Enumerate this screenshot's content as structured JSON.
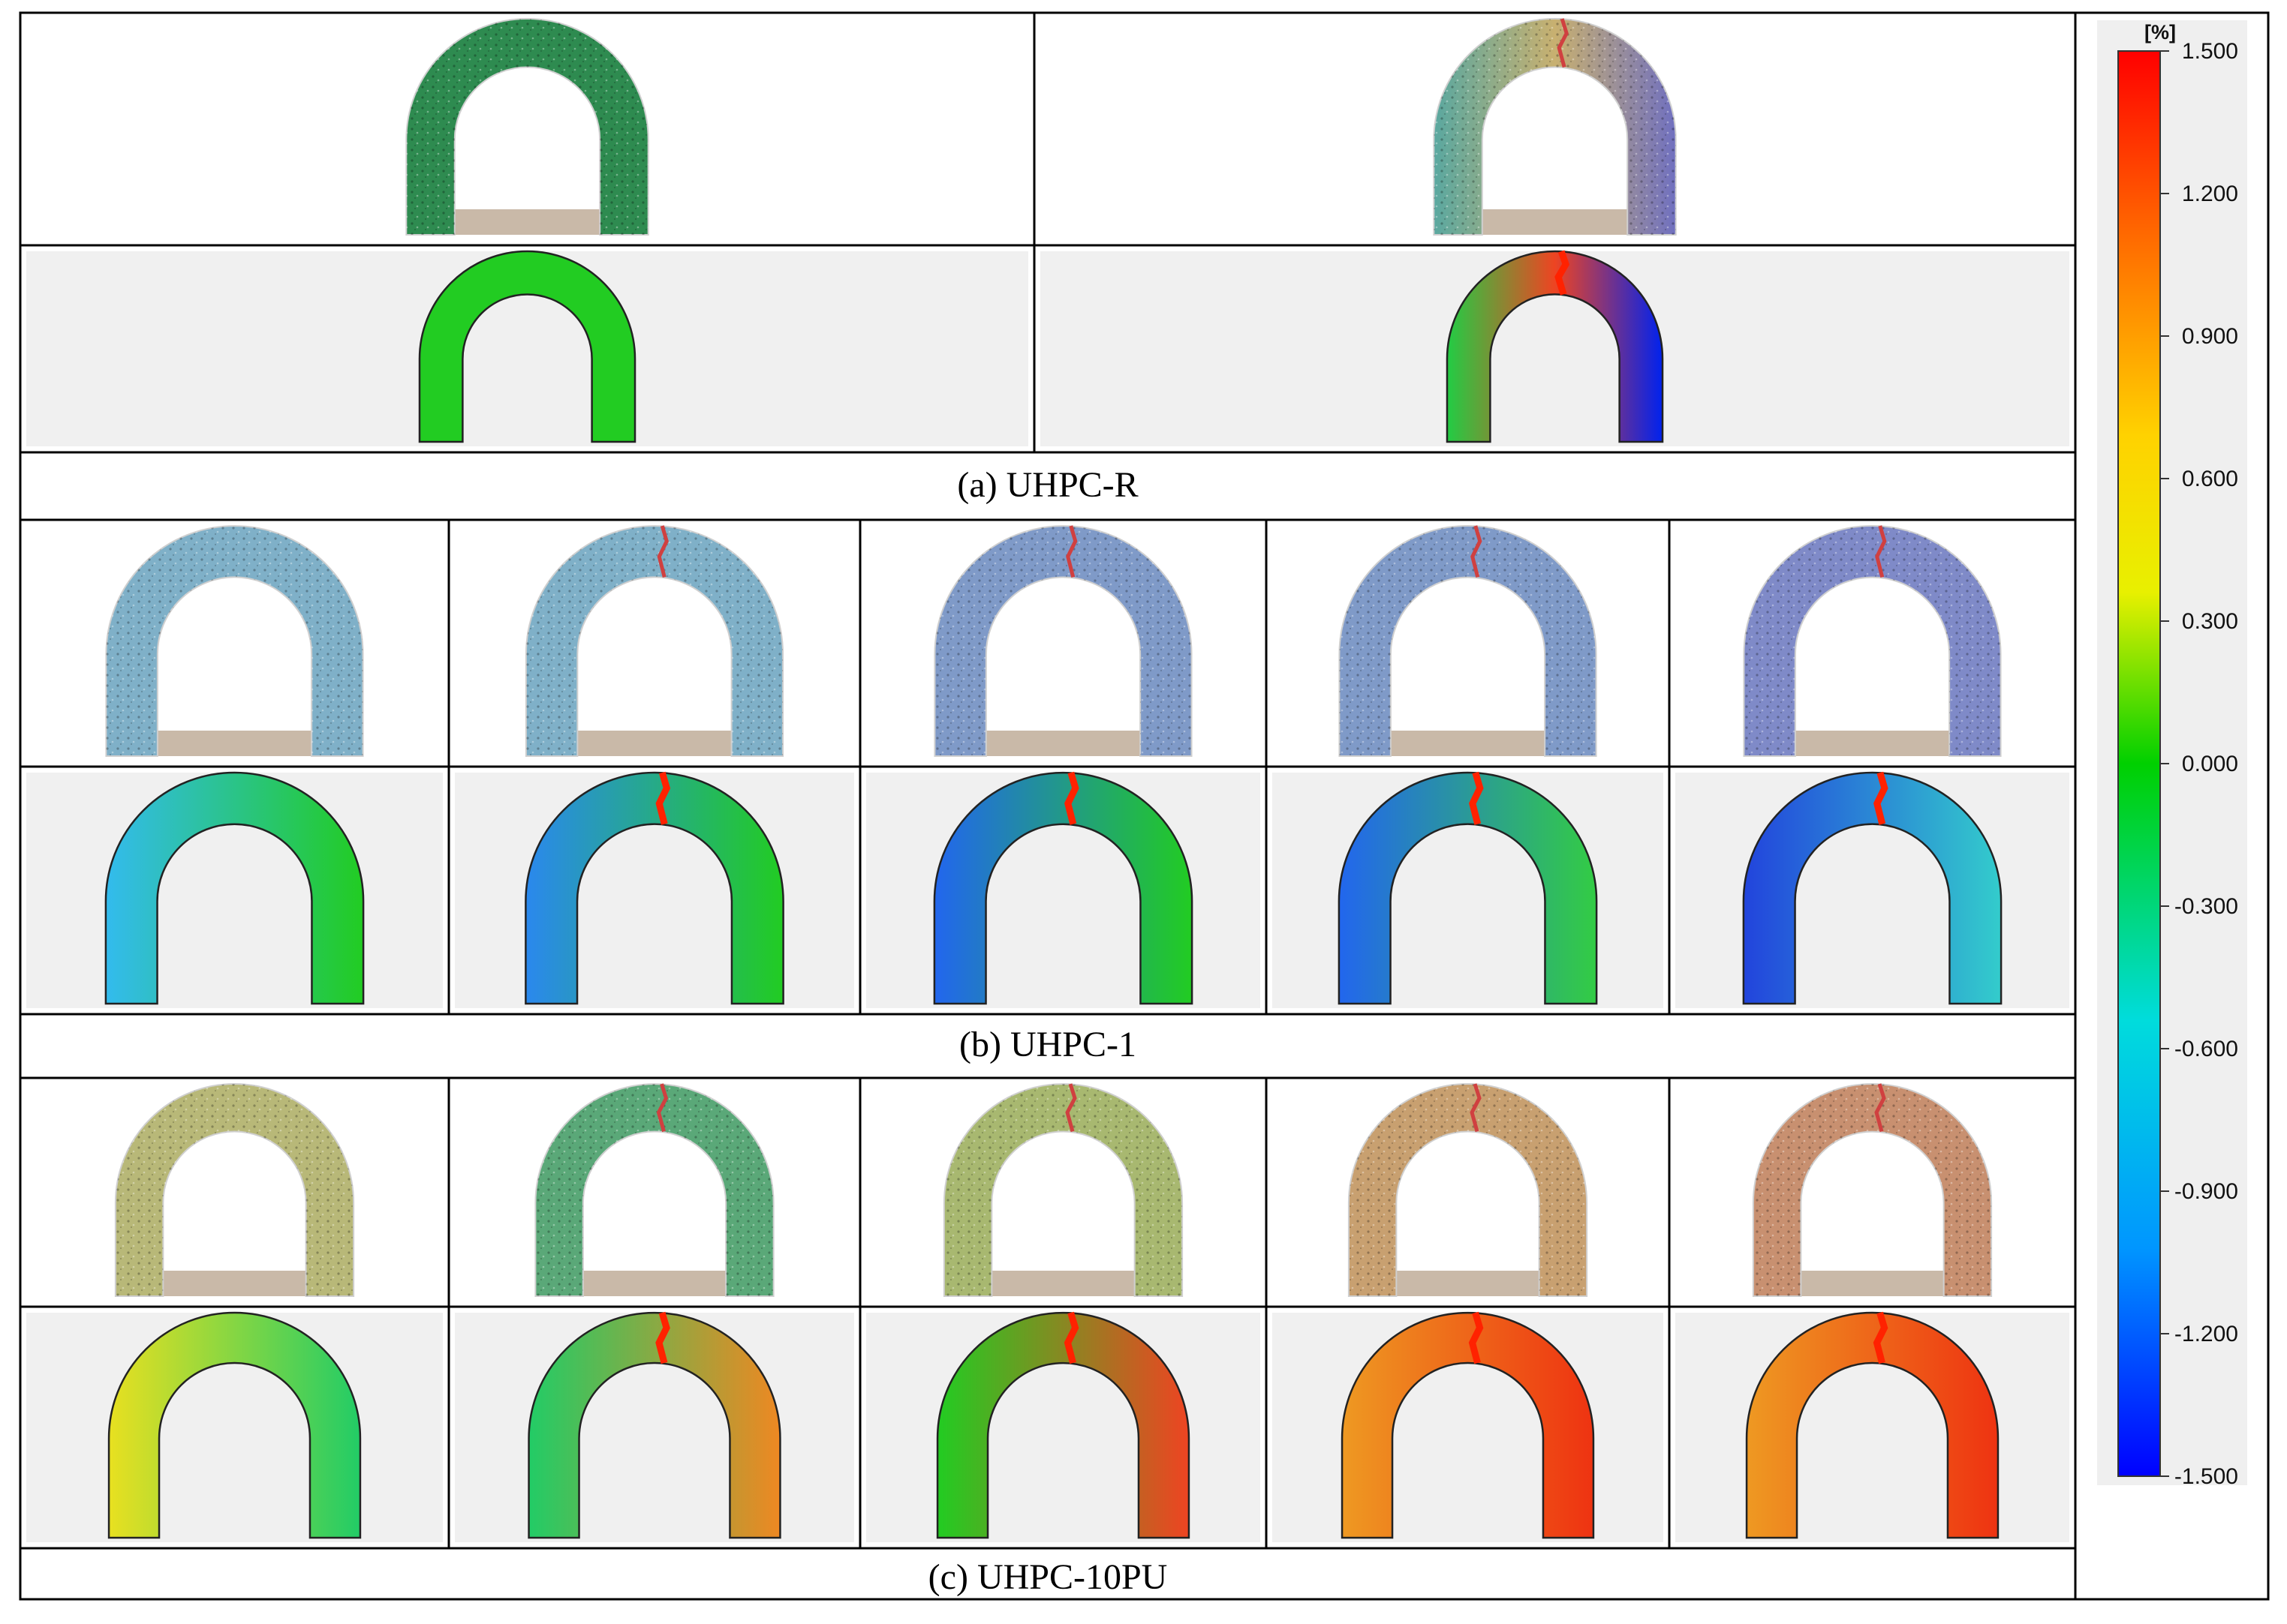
{
  "colorbar": {
    "unit": "[%]",
    "ticks": [
      "1.500",
      "1.200",
      "0.900",
      "0.600",
      "0.300",
      "0.000",
      "-0.300",
      "-0.600",
      "-0.900",
      "-1.200",
      "-1.500"
    ],
    "gradient": [
      "#ff0000",
      "#ff6a00",
      "#ffd200",
      "#e8f000",
      "#00d000",
      "#00dcdc",
      "#0096ff",
      "#0000ff"
    ]
  },
  "groups": [
    {
      "caption": "(a)  UHPC-R",
      "photo_tints": [
        "#2e8b50",
        "mixed-crack"
      ],
      "strain_fields": [
        {
          "base": "#22cc22",
          "crack": false
        },
        {
          "base": "mixed-crack",
          "crack": true
        }
      ]
    },
    {
      "caption": "(b)  UHPC-1",
      "photo_tints": [
        "#7fb0c8",
        "#7fb0c8",
        "#7f9ac8",
        "#7f9ac8",
        "#7f8ac8"
      ],
      "strain_fields": [
        {
          "left": "#33bbee",
          "right": "#22cc22",
          "crack": false
        },
        {
          "left": "#2a88ee",
          "right": "#22cc22",
          "crack": true
        },
        {
          "left": "#2266ee",
          "right": "#22cc22",
          "crack": true
        },
        {
          "left": "#2266ee",
          "right": "#33cc44",
          "crack": true
        },
        {
          "left": "#2244dd",
          "right": "#33cccc",
          "crack": true
        }
      ]
    },
    {
      "caption": "(c)  UHPC-10PU",
      "photo_tints": [
        "#b8b878",
        "#5aa878",
        "#a8b870",
        "#c8a070",
        "#c89070"
      ],
      "strain_fields": [
        {
          "left": "#e8e020",
          "right": "#22cc66",
          "crack": false
        },
        {
          "left": "#22cc66",
          "right": "#ee8822",
          "crack": true
        },
        {
          "left": "#22cc22",
          "right": "#ee4422",
          "crack": true
        },
        {
          "left": "#ee9922",
          "right": "#ee3311",
          "crack": true
        },
        {
          "left": "#ee9922",
          "right": "#ee3311",
          "crack": true
        }
      ]
    }
  ]
}
